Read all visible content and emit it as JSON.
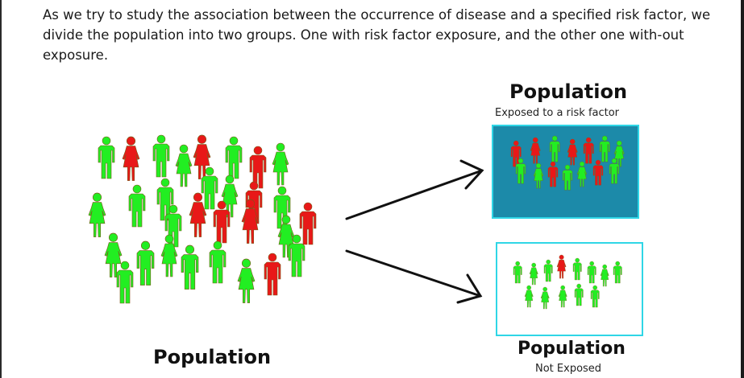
{
  "intro_text": "As we try to study the association between the occurrence of disease and a specified risk factor, we divide the population into two groups. One with risk factor exposure, and the other one with-out exposure.",
  "left_group": {
    "title": "Population"
  },
  "exposed_group": {
    "title": "Population",
    "subtitle": "Exposed to a risk factor"
  },
  "not_exposed_group": {
    "title": "Population",
    "subtitle": "Not Exposed"
  },
  "colors": {
    "healthy": "#22ee22",
    "diseased": "#e81818",
    "exposed_box_bg": "#1c8aa9",
    "box_border": "#2fd6e6",
    "arrow": "#111111"
  }
}
